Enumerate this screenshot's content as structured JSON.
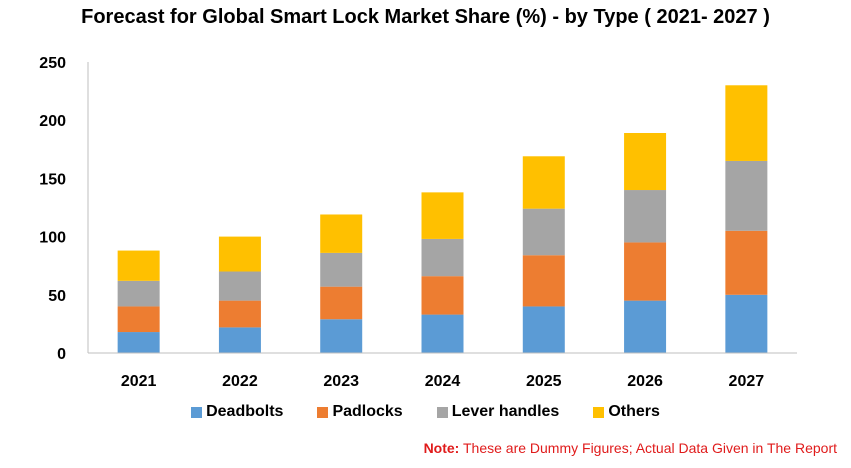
{
  "chart_data": {
    "type": "bar",
    "stacked": true,
    "title": "Forecast for Global Smart Lock Market Share (%) - by Type ( 2021- 2027 )",
    "categories": [
      "2021",
      "2022",
      "2023",
      "2024",
      "2025",
      "2026",
      "2027"
    ],
    "series": [
      {
        "name": "Deadbolts",
        "color": "#5b9bd5",
        "values": [
          18,
          22,
          29,
          33,
          40,
          45,
          50
        ]
      },
      {
        "name": "Padlocks",
        "color": "#ed7d31",
        "values": [
          22,
          23,
          28,
          33,
          44,
          50,
          55
        ]
      },
      {
        "name": "Lever handles",
        "color": "#a5a5a5",
        "values": [
          22,
          25,
          29,
          32,
          40,
          45,
          60
        ]
      },
      {
        "name": "Others",
        "color": "#ffc000",
        "values": [
          26,
          30,
          33,
          40,
          45,
          49,
          65
        ]
      }
    ],
    "ylim": [
      0,
      250
    ],
    "yticks": [
      "0",
      "50",
      "100",
      "150",
      "200",
      "250"
    ],
    "grid": false,
    "legend_position": "bottom"
  },
  "note": {
    "label": "Note:",
    "text": "These are Dummy Figures; Actual Data Given in The Report"
  }
}
